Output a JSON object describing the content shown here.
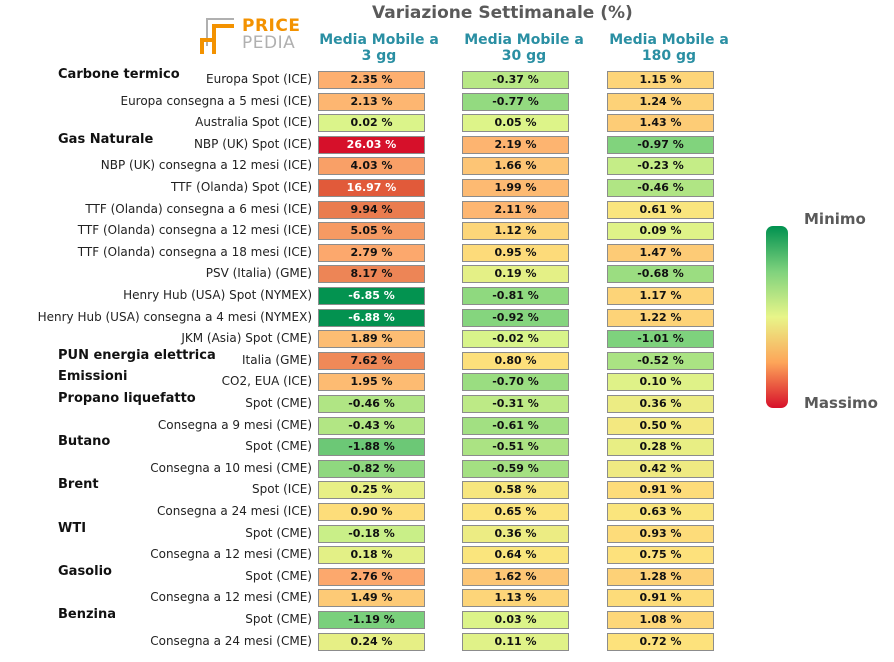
{
  "chart_data": {
    "type": "table",
    "title": "Variazione Settimanale (%)",
    "logo": {
      "line1": "PRICE",
      "line2": "PEDIA"
    },
    "columns": [
      {
        "line1": "Media Mobile a",
        "line2": "3 gg"
      },
      {
        "line1": "Media Mobile a",
        "line2": "30 gg"
      },
      {
        "line1": "Media Mobile a",
        "line2": "180 gg"
      }
    ],
    "legend": {
      "top": "Minimo",
      "bottom": "Massimo",
      "colors": [
        "#00914f",
        "#7fd27d",
        "#e8f589",
        "#fda559",
        "#d7102a"
      ]
    },
    "groups": [
      {
        "name": "Carbone termico",
        "rows": [
          {
            "label": "Europa Spot (ICE)",
            "values": [
              2.35,
              -0.37,
              1.15
            ]
          },
          {
            "label": "Europa consegna a 5 mesi (ICE)",
            "values": [
              2.13,
              -0.77,
              1.24
            ]
          },
          {
            "label": "Australia Spot (ICE)",
            "values": [
              0.02,
              0.05,
              1.43
            ]
          }
        ]
      },
      {
        "name": "Gas Naturale",
        "rows": [
          {
            "label": "NBP (UK) Spot (ICE)",
            "values": [
              26.03,
              2.19,
              -0.97
            ]
          },
          {
            "label": "NBP (UK) consegna a 12 mesi (ICE)",
            "values": [
              4.03,
              1.66,
              -0.23
            ]
          },
          {
            "label": "TTF (Olanda) Spot (ICE)",
            "values": [
              16.97,
              1.99,
              -0.46
            ]
          },
          {
            "label": "TTF (Olanda) consegna a 6 mesi (ICE)",
            "values": [
              9.94,
              2.11,
              0.61
            ]
          },
          {
            "label": "TTF (Olanda) consegna a 12 mesi (ICE)",
            "values": [
              5.05,
              1.12,
              0.09
            ]
          },
          {
            "label": "TTF (Olanda) consegna a 18 mesi (ICE)",
            "values": [
              2.79,
              0.95,
              1.47
            ]
          },
          {
            "label": "PSV (Italia) (GME)",
            "values": [
              8.17,
              0.19,
              -0.68
            ]
          },
          {
            "label": "Henry Hub (USA) Spot (NYMEX)",
            "values": [
              -6.85,
              -0.81,
              1.17
            ]
          },
          {
            "label": "Henry Hub (USA) consegna a 4 mesi (NYMEX)",
            "values": [
              -6.88,
              -0.92,
              1.22
            ]
          },
          {
            "label": "JKM (Asia) Spot (CME)",
            "values": [
              1.89,
              -0.02,
              -1.01
            ]
          }
        ]
      },
      {
        "name": "PUN energia elettrica",
        "rows": [
          {
            "label": "Italia (GME)",
            "values": [
              7.62,
              0.8,
              -0.52
            ]
          }
        ]
      },
      {
        "name": "Emissioni",
        "rows": [
          {
            "label": "CO2, EUA (ICE)",
            "values": [
              1.95,
              -0.7,
              0.1
            ]
          }
        ]
      },
      {
        "name": "Propano liquefatto",
        "rows": [
          {
            "label": "Spot (CME)",
            "values": [
              -0.46,
              -0.31,
              0.36
            ]
          },
          {
            "label": "Consegna a 9 mesi (CME)",
            "values": [
              -0.43,
              -0.61,
              0.5
            ]
          }
        ]
      },
      {
        "name": "Butano",
        "rows": [
          {
            "label": "Spot (CME)",
            "values": [
              -1.88,
              -0.51,
              0.28
            ]
          },
          {
            "label": "Consegna a 10 mesi (CME)",
            "values": [
              -0.82,
              -0.59,
              0.42
            ]
          }
        ]
      },
      {
        "name": "Brent",
        "rows": [
          {
            "label": "Spot (ICE)",
            "values": [
              0.25,
              0.58,
              0.91
            ]
          },
          {
            "label": "Consegna a 24 mesi (ICE)",
            "values": [
              0.9,
              0.65,
              0.63
            ]
          }
        ]
      },
      {
        "name": "WTI",
        "rows": [
          {
            "label": "Spot (CME)",
            "values": [
              -0.18,
              0.36,
              0.93
            ]
          },
          {
            "label": "Consegna a 12 mesi (CME)",
            "values": [
              0.18,
              0.64,
              0.75
            ]
          }
        ]
      },
      {
        "name": "Gasolio",
        "rows": [
          {
            "label": "Spot (CME)",
            "values": [
              2.76,
              1.62,
              1.28
            ]
          },
          {
            "label": "Consegna a 12 mesi (CME)",
            "values": [
              1.49,
              1.13,
              0.91
            ]
          }
        ]
      },
      {
        "name": "Benzina",
        "rows": [
          {
            "label": "Spot (CME)",
            "values": [
              -1.19,
              0.03,
              1.08
            ]
          },
          {
            "label": "Consegna a 24 mesi (CME)",
            "values": [
              0.24,
              0.11,
              0.72
            ]
          }
        ]
      }
    ]
  }
}
